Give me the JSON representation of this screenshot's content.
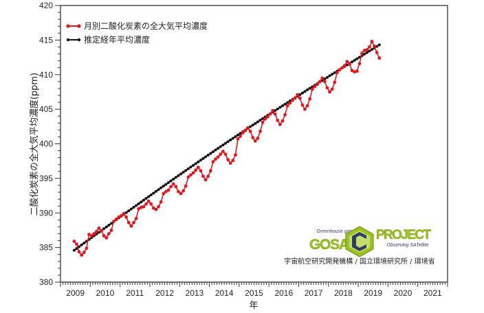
{
  "chart_data": {
    "type": "line",
    "title": "",
    "xlabel": "年",
    "ylabel": "二酸化炭素の全大気平均濃度(ppm)",
    "ylim": [
      380,
      420
    ],
    "yticks": [
      380,
      385,
      390,
      395,
      400,
      405,
      410,
      415,
      420
    ],
    "xticks": [
      "2009",
      "2010",
      "2011",
      "2012",
      "2013",
      "2014",
      "2015",
      "2016",
      "2017",
      "2018",
      "2019",
      "2020",
      "2021"
    ],
    "xlim": [
      "2009-01",
      "2022-01"
    ],
    "grid": false,
    "legend_position": "top-left",
    "series": [
      {
        "name": "月別二酸化炭素の全大気平均濃度",
        "color": "#e8141b",
        "marker": "circle",
        "start": "2009-06",
        "values": [
          385.9,
          385.5,
          384.4,
          383.9,
          384.3,
          384.9,
          386.9,
          386.7,
          387.0,
          387.3,
          387.8,
          387.4,
          386.7,
          386.4,
          387.0,
          387.5,
          388.8,
          389.1,
          389.4,
          389.6,
          389.9,
          389.4,
          388.6,
          388.1,
          388.6,
          389.2,
          390.6,
          390.8,
          390.9,
          391.3,
          391.7,
          391.3,
          390.7,
          390.5,
          390.9,
          391.6,
          392.8,
          393.1,
          393.3,
          393.8,
          394.2,
          393.8,
          393.1,
          392.8,
          393.2,
          393.9,
          395.2,
          395.5,
          395.8,
          396.2,
          396.6,
          396.1,
          395.3,
          394.8,
          395.3,
          396.1,
          397.4,
          397.8,
          398.1,
          398.5,
          398.9,
          398.5,
          397.7,
          397.2,
          397.6,
          398.4,
          400.7,
          401.1,
          401.6,
          401.9,
          402.3,
          401.8,
          400.9,
          400.4,
          400.8,
          401.8,
          403.1,
          403.6,
          403.9,
          404.3,
          404.8,
          404.3,
          403.4,
          402.8,
          403.3,
          404.2,
          405.5,
          405.9,
          406.3,
          406.6,
          407.1,
          406.6,
          405.6,
          405.0,
          405.5,
          406.5,
          407.9,
          408.3,
          408.6,
          409.0,
          409.5,
          409.0,
          408.1,
          407.5,
          407.9,
          408.9,
          410.3,
          410.7,
          411.0,
          411.3,
          411.9,
          411.5,
          410.6,
          410.4,
          410.5,
          411.6,
          413.1,
          413.5,
          413.6,
          414.0,
          414.8,
          414.1,
          413.2,
          412.4
        ]
      },
      {
        "name": "推定経年平均濃度",
        "color": "#111111",
        "marker": "circle-small",
        "start": "2009-06",
        "trend_start_value": 384.6,
        "trend_end_value": 414.3,
        "points": 124
      }
    ]
  },
  "legend": {
    "items": [
      {
        "label": "月別二酸化炭素の全大気平均濃度",
        "color": "#e8141b"
      },
      {
        "label": "推定経年平均濃度",
        "color": "#111111"
      }
    ]
  },
  "logo": {
    "tagline_top": "Greenhouse gases",
    "name_left": "GOSAT",
    "name_right": "PROJECT",
    "tagline_bottom": "Observing SATellite",
    "accent_color": "#9bc31c",
    "dark_color": "#2e3f6e"
  },
  "credit": "宇宙航空研究開発機構 / 国立環境研究所 / 環境省"
}
